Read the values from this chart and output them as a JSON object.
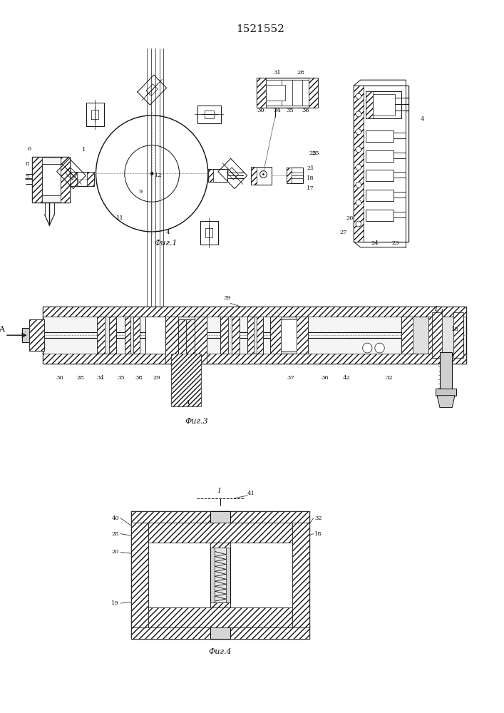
{
  "title": "1521552",
  "background_color": "#ffffff",
  "fig1_caption": "Фиг.1",
  "fig3_caption": "Фиг.3",
  "fig4_caption": "Фиг.4"
}
